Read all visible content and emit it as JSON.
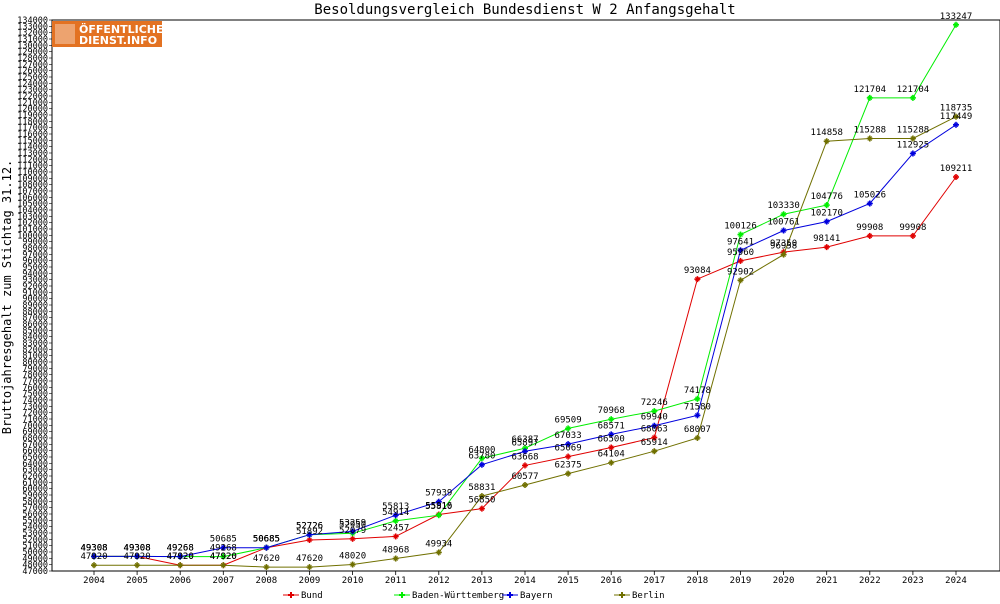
{
  "chart_data": {
    "type": "line",
    "title": "Besoldungsvergleich Bundesdienst W 2 Anfangsgehalt",
    "xlabel": "",
    "ylabel": "Bruttojahresgehalt zum Stichtag 31.12.",
    "categories": [
      "2004",
      "2005",
      "2006",
      "2007",
      "2008",
      "2009",
      "2010",
      "2011",
      "2012",
      "2013",
      "2014",
      "2015",
      "2016",
      "2017",
      "2018",
      "2019",
      "2020",
      "2021",
      "2022",
      "2023",
      "2024"
    ],
    "ylim": [
      47000,
      134000
    ],
    "ytick_step": 1000,
    "grid": false,
    "legend_position": "bottom",
    "series": [
      {
        "name": "Bund",
        "color": "#e00000",
        "values": [
          49308,
          49308,
          47920,
          47920,
          50685,
          51892,
          52079,
          52457,
          55916,
          56850,
          63668,
          65069,
          66500,
          68063,
          93084,
          95960,
          97350,
          98141,
          99908,
          99908,
          109211
        ]
      },
      {
        "name": "Baden-Württemberg",
        "color": "#00ee00",
        "values": [
          49308,
          49308,
          49268,
          49268,
          50685,
          52726,
          52950,
          54914,
          55810,
          64800,
          66387,
          69509,
          70968,
          72246,
          74178,
          100126,
          103330,
          104776,
          121704,
          121704,
          133247
        ]
      },
      {
        "name": "Bayern",
        "color": "#0000dd",
        "values": [
          49308,
          49308,
          49268,
          50685,
          50685,
          52726,
          53259,
          55813,
          57939,
          63780,
          65897,
          67033,
          68571,
          69940,
          71580,
          97641,
          100761,
          102170,
          105026,
          112925,
          117449
        ]
      },
      {
        "name": "Berlin",
        "color": "#707000",
        "values": [
          47920,
          47920,
          47920,
          47920,
          47620,
          47620,
          48020,
          48968,
          49934,
          58831,
          60577,
          62375,
          64104,
          65914,
          68007,
          92902,
          96958,
          114858,
          115288,
          115288,
          118735
        ]
      }
    ]
  },
  "logo": {
    "line1": "ÖFFENTLICHER",
    "line2": "DIENST.INFO",
    "color": "#e37222"
  }
}
